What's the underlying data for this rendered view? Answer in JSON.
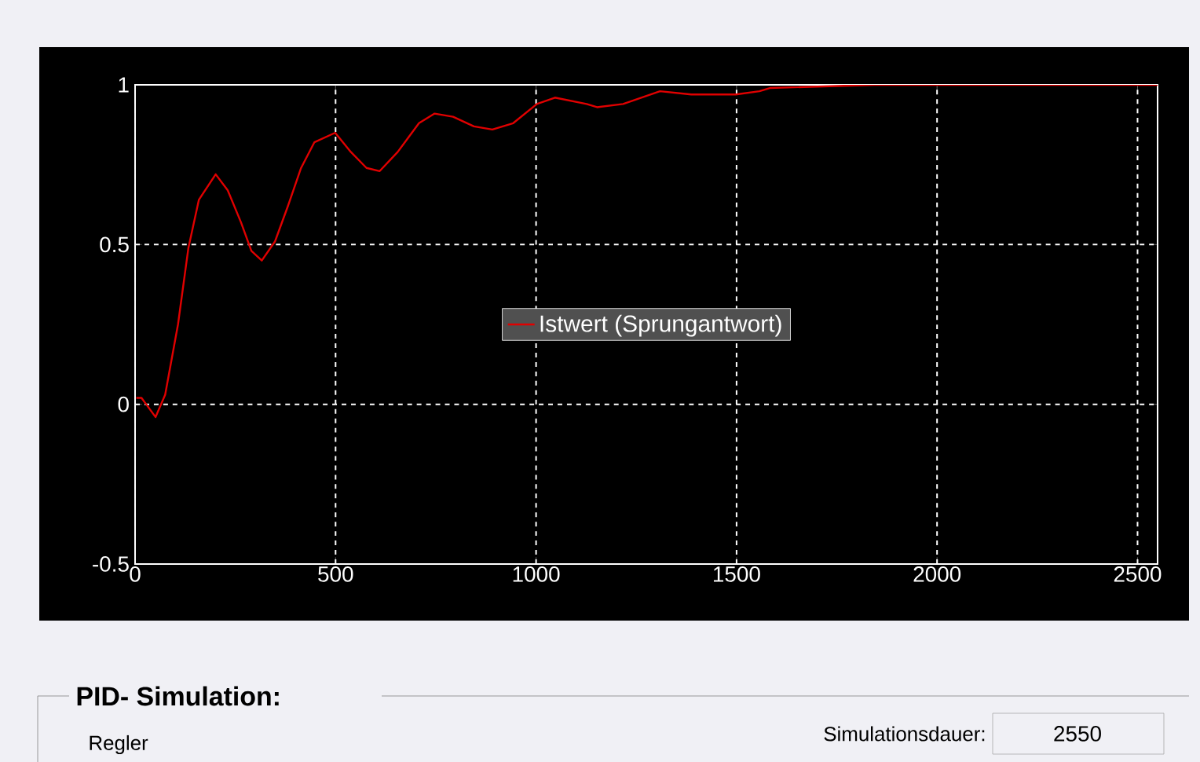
{
  "chart_data": {
    "type": "line",
    "x": [
      3,
      16,
      51,
      75,
      107,
      133,
      159,
      201,
      231,
      264,
      290,
      316,
      349,
      381,
      414,
      447,
      499,
      538,
      577,
      610,
      655,
      708,
      747,
      793,
      845,
      891,
      943,
      1002,
      1047,
      1126,
      1152,
      1217,
      1309,
      1387,
      1498,
      1557,
      1583,
      1844,
      2550
    ],
    "series": [
      {
        "name": "Istwert (Sprungantwort)",
        "color": "#e00000",
        "values": [
          0.02,
          0.02,
          -0.04,
          0.03,
          0.25,
          0.49,
          0.64,
          0.72,
          0.67,
          0.57,
          0.48,
          0.45,
          0.51,
          0.62,
          0.74,
          0.82,
          0.85,
          0.79,
          0.74,
          0.73,
          0.79,
          0.88,
          0.91,
          0.9,
          0.87,
          0.86,
          0.88,
          0.94,
          0.96,
          0.94,
          0.93,
          0.94,
          0.98,
          0.97,
          0.97,
          0.98,
          0.99,
          1.0,
          1.0
        ]
      }
    ],
    "xlim": [
      0,
      2550
    ],
    "ylim": [
      -0.5,
      1
    ],
    "xticks": [
      0,
      500,
      1000,
      1500,
      2000,
      2500
    ],
    "yticks": [
      -0.5,
      0,
      0.5,
      1
    ],
    "grid": true,
    "legend": "center",
    "line_style": "solid",
    "marker": "none",
    "annotations": [
      "PID- Simulation:",
      "Regler",
      "Simulationsdauer:",
      "2550"
    ]
  }
}
